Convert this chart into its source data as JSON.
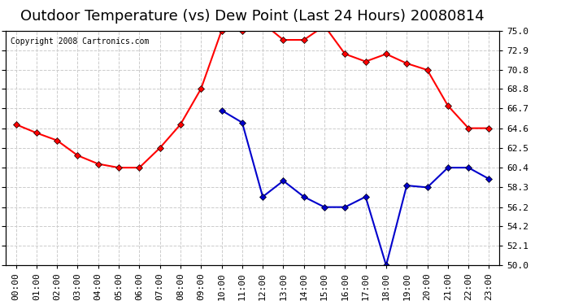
{
  "title": "Outdoor Temperature (vs) Dew Point (Last 24 Hours) 20080814",
  "copyright": "Copyright 2008 Cartronics.com",
  "x_labels": [
    "00:00",
    "01:00",
    "02:00",
    "03:00",
    "04:00",
    "05:00",
    "06:00",
    "07:00",
    "08:00",
    "09:00",
    "10:00",
    "11:00",
    "12:00",
    "13:00",
    "14:00",
    "15:00",
    "16:00",
    "17:00",
    "18:00",
    "19:00",
    "20:00",
    "21:00",
    "22:00",
    "23:00"
  ],
  "temp_data": [
    65.0,
    64.1,
    63.3,
    61.7,
    60.8,
    60.4,
    60.4,
    62.5,
    65.0,
    68.8,
    75.0,
    75.0,
    75.8,
    74.0,
    74.0,
    75.5,
    72.5,
    71.7,
    72.5,
    71.5,
    70.8,
    67.0,
    64.6,
    64.6
  ],
  "dew_data": [
    null,
    null,
    null,
    null,
    null,
    null,
    null,
    null,
    null,
    null,
    66.5,
    65.2,
    57.3,
    59.0,
    57.3,
    56.2,
    56.2,
    57.3,
    50.0,
    58.5,
    58.3,
    60.4,
    60.4,
    59.2
  ],
  "temp_color": "#FF0000",
  "dew_color": "#0000CC",
  "bg_color": "#FFFFFF",
  "plot_bg_color": "#FFFFFF",
  "grid_color": "#CCCCCC",
  "yticks": [
    50.0,
    52.1,
    54.2,
    56.2,
    58.3,
    60.4,
    62.5,
    64.6,
    66.7,
    68.8,
    70.8,
    72.9,
    75.0
  ],
  "ymin": 50.0,
  "ymax": 75.0,
  "title_fontsize": 13,
  "copyright_fontsize": 7,
  "tick_fontsize": 8,
  "marker": "D",
  "markersize": 4,
  "linewidth": 1.5
}
